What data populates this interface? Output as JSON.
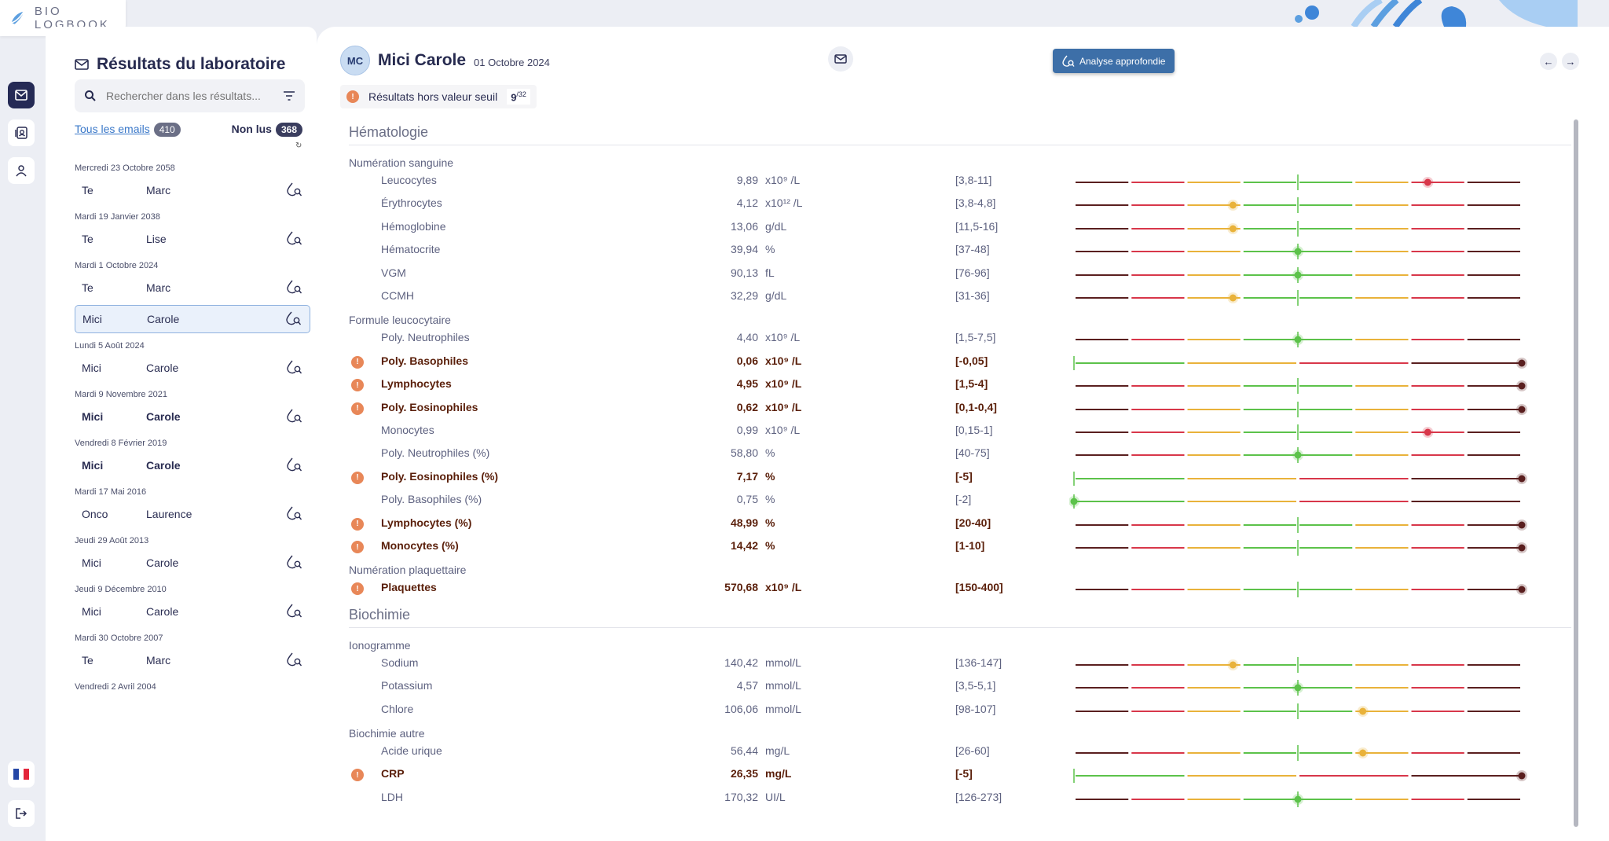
{
  "app": {
    "logo_text": "BIO  LOGBOOK"
  },
  "rail": {
    "icons": [
      "mail-icon",
      "contacts-icon",
      "user-icon"
    ],
    "bottom": [
      "france-flag-icon",
      "logout-icon"
    ]
  },
  "left": {
    "title": "Résultats du laboratoire",
    "search_placeholder": "Rechercher dans les résultats...",
    "all_label": "Tous les emails",
    "all_count": "410",
    "unread_label": "Non lus",
    "unread_count": "368",
    "groups": [
      {
        "date": "Mercredi 23 Octobre 2058",
        "items": [
          {
            "first": "Te",
            "last": "Marc"
          }
        ]
      },
      {
        "date": "Mardi 19 Janvier 2038",
        "items": [
          {
            "first": "Te",
            "last": "Lise"
          }
        ]
      },
      {
        "date": "Mardi 1 Octobre 2024",
        "items": [
          {
            "first": "Te",
            "last": "Marc"
          },
          {
            "first": "Mici",
            "last": "Carole",
            "selected": true
          }
        ]
      },
      {
        "date": "Lundi 5 Août 2024",
        "items": [
          {
            "first": "Mici",
            "last": "Carole"
          }
        ]
      },
      {
        "date": "Mardi 9 Novembre 2021",
        "items": [
          {
            "first": "Mici",
            "last": "Carole",
            "bold": true
          }
        ]
      },
      {
        "date": "Vendredi 8 Février 2019",
        "items": [
          {
            "first": "Mici",
            "last": "Carole",
            "bold": true
          }
        ]
      },
      {
        "date": "Mardi 17 Mai 2016",
        "items": [
          {
            "first": "Onco",
            "last": "Laurence"
          }
        ]
      },
      {
        "date": "Jeudi 29 Août 2013",
        "items": [
          {
            "first": "Mici",
            "last": "Carole"
          }
        ]
      },
      {
        "date": "Jeudi 9 Décembre 2010",
        "items": [
          {
            "first": "Mici",
            "last": "Carole"
          }
        ]
      },
      {
        "date": "Mardi 30 Octobre 2007",
        "items": [
          {
            "first": "Te",
            "last": "Marc"
          }
        ]
      },
      {
        "date": "Vendredi 2 Avril 2004",
        "items": []
      }
    ]
  },
  "patient": {
    "initials": "MC",
    "name": "Mici Carole",
    "date": "01 Octobre 2024"
  },
  "deep_button": "Analyse approfondie",
  "alert": {
    "label": "Résultats hors valeur seuil",
    "num": "9",
    "den": "/32"
  },
  "colors": {
    "dark": "#5a1f1f",
    "red": "#d8374a",
    "yellow": "#e9b23a",
    "green": "#5cc24a"
  },
  "sections": [
    {
      "title": "Hématologie",
      "groups": [
        {
          "title": "Numération sanguine",
          "rows": [
            {
              "name": "Leucocytes",
              "value": "9,89",
              "unit": "x10⁹ /L",
              "ref": "[3,8-11]",
              "pos": 0.79,
              "dot": "red"
            },
            {
              "name": "Érythrocytes",
              "value": "4,12",
              "unit": "x10¹² /L",
              "ref": "[3,8-4,8]",
              "pos": 0.355,
              "dot": "yellow"
            },
            {
              "name": "Hémoglobine",
              "value": "13,06",
              "unit": "g/dL",
              "ref": "[11,5-16]",
              "pos": 0.355,
              "dot": "yellow"
            },
            {
              "name": "Hématocrite",
              "value": "39,94",
              "unit": "%",
              "ref": "[37-48]",
              "pos": 0.5,
              "dot": "green"
            },
            {
              "name": "VGM",
              "value": "90,13",
              "unit": "fL",
              "ref": "[76-96]",
              "pos": 0.5,
              "dot": "green"
            },
            {
              "name": "CCMH",
              "value": "32,29",
              "unit": "g/dL",
              "ref": "[31-36]",
              "pos": 0.355,
              "dot": "yellow"
            }
          ]
        },
        {
          "title": "Formule leucocytaire",
          "rows": [
            {
              "name": "Poly. Neutrophiles",
              "value": "4,40",
              "unit": "x10⁹ /L",
              "ref": "[1,5-7,5]",
              "pos": 0.5,
              "dot": "green"
            },
            {
              "name": "Poly. Basophiles",
              "value": "0,06",
              "unit": "x10⁹ /L",
              "ref": "[-0,05]",
              "pos": 1,
              "dot": "dark",
              "abn": true,
              "half": true
            },
            {
              "name": "Lymphocytes",
              "value": "4,95",
              "unit": "x10⁹ /L",
              "ref": "[1,5-4]",
              "pos": 1,
              "dot": "dark",
              "abn": true
            },
            {
              "name": "Poly. Eosinophiles",
              "value": "0,62",
              "unit": "x10⁹ /L",
              "ref": "[0,1-0,4]",
              "pos": 1,
              "dot": "dark",
              "abn": true
            },
            {
              "name": "Monocytes",
              "value": "0,99",
              "unit": "x10⁹ /L",
              "ref": "[0,15-1]",
              "pos": 0.79,
              "dot": "red"
            },
            {
              "name": "Poly. Neutrophiles (%)",
              "value": "58,80",
              "unit": "%",
              "ref": "[40-75]",
              "pos": 0.5,
              "dot": "green"
            },
            {
              "name": "Poly. Eosinophiles (%)",
              "value": "7,17",
              "unit": "%",
              "ref": "[-5]",
              "pos": 1,
              "dot": "dark",
              "abn": true,
              "half": true
            },
            {
              "name": "Poly. Basophiles (%)",
              "value": "0,75",
              "unit": "%",
              "ref": "[-2]",
              "pos": 0,
              "dot": "green",
              "half": true
            },
            {
              "name": "Lymphocytes (%)",
              "value": "48,99",
              "unit": "%",
              "ref": "[20-40]",
              "pos": 1,
              "dot": "dark",
              "abn": true
            },
            {
              "name": "Monocytes (%)",
              "value": "14,42",
              "unit": "%",
              "ref": "[1-10]",
              "pos": 1,
              "dot": "dark",
              "abn": true
            }
          ]
        },
        {
          "title": "Numération plaquettaire",
          "rows": [
            {
              "name": "Plaquettes",
              "value": "570,68",
              "unit": "x10⁹ /L",
              "ref": "[150-400]",
              "pos": 1,
              "dot": "dark",
              "abn": true
            }
          ]
        }
      ]
    },
    {
      "title": "Biochimie",
      "groups": [
        {
          "title": "Ionogramme",
          "rows": [
            {
              "name": "Sodium",
              "value": "140,42",
              "unit": "mmol/L",
              "ref": "[136-147]",
              "pos": 0.355,
              "dot": "yellow"
            },
            {
              "name": "Potassium",
              "value": "4,57",
              "unit": "mmol/L",
              "ref": "[3,5-5,1]",
              "pos": 0.5,
              "dot": "green"
            },
            {
              "name": "Chlore",
              "value": "106,06",
              "unit": "mmol/L",
              "ref": "[98-107]",
              "pos": 0.645,
              "dot": "yellow"
            }
          ]
        },
        {
          "title": "Biochimie autre",
          "rows": [
            {
              "name": "Acide urique",
              "value": "56,44",
              "unit": "mg/L",
              "ref": "[26-60]",
              "pos": 0.645,
              "dot": "yellow"
            },
            {
              "name": "CRP",
              "value": "26,35",
              "unit": "mg/L",
              "ref": "[-5]",
              "pos": 1,
              "dot": "dark",
              "abn": true,
              "half": true
            },
            {
              "name": "LDH",
              "value": "170,32",
              "unit": "UI/L",
              "ref": "[126-273]",
              "pos": 0.5,
              "dot": "green"
            }
          ]
        }
      ]
    }
  ]
}
